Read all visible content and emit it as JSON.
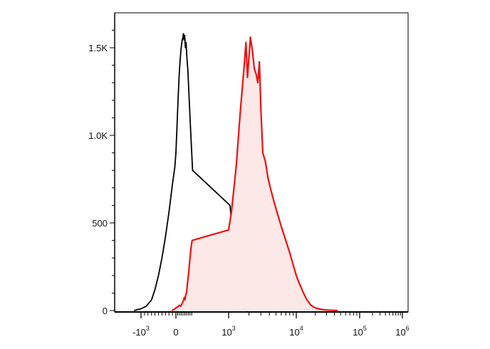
{
  "chart_data": {
    "type": "area",
    "title": "",
    "xlabel": "",
    "ylabel": "",
    "x_scale": "biexponential",
    "ylim": [
      0,
      1650
    ],
    "y_ticks": [
      {
        "value": 0,
        "label": "0"
      },
      {
        "value": 500,
        "label": "500"
      },
      {
        "value": 1000,
        "label": "1.0K"
      },
      {
        "value": 1500,
        "label": "1.5K"
      }
    ],
    "x_ticks": [
      {
        "value": -1000,
        "base": "-10",
        "exp": "3"
      },
      {
        "value": 0,
        "base": "0",
        "exp": ""
      },
      {
        "value": 1000,
        "base": "10",
        "exp": "3"
      },
      {
        "value": 10000,
        "base": "10",
        "exp": "4"
      },
      {
        "value": 100000,
        "base": "10",
        "exp": "5"
      },
      {
        "value": 1000000,
        "base": "10",
        "exp": "6"
      }
    ],
    "grid": false,
    "colors": {
      "control": "#000000",
      "stained_line": "#ee1111",
      "stained_fill": "#fde8e8",
      "axis": "#000000"
    },
    "series": [
      {
        "style": "outline",
        "color": "#000000",
        "points": [
          [
            -1200,
            0
          ],
          [
            -1000,
            10
          ],
          [
            -850,
            25
          ],
          [
            -700,
            60
          ],
          [
            -600,
            120
          ],
          [
            -500,
            200
          ],
          [
            -400,
            300
          ],
          [
            -300,
            420
          ],
          [
            -200,
            560
          ],
          [
            -100,
            720
          ],
          [
            -30,
            820
          ],
          [
            0,
            900
          ],
          [
            60,
            1050
          ],
          [
            120,
            1200
          ],
          [
            180,
            1330
          ],
          [
            240,
            1430
          ],
          [
            300,
            1500
          ],
          [
            350,
            1540
          ],
          [
            400,
            1560
          ],
          [
            430,
            1580
          ],
          [
            460,
            1545
          ],
          [
            500,
            1570
          ],
          [
            540,
            1500
          ],
          [
            580,
            1530
          ],
          [
            620,
            1450
          ],
          [
            680,
            1370
          ],
          [
            760,
            1200
          ],
          [
            850,
            1000
          ],
          [
            950,
            800
          ],
          [
            1050,
            600
          ],
          [
            1150,
            430
          ],
          [
            1250,
            300
          ],
          [
            1350,
            190
          ],
          [
            1450,
            110
          ],
          [
            1600,
            50
          ],
          [
            1750,
            15
          ],
          [
            1900,
            0
          ]
        ]
      },
      {
        "style": "filled",
        "color": "#ee1111",
        "points": [
          [
            -120,
            0
          ],
          [
            -40,
            8
          ],
          [
            40,
            18
          ],
          [
            120,
            22
          ],
          [
            200,
            30
          ],
          [
            280,
            25
          ],
          [
            350,
            40
          ],
          [
            420,
            55
          ],
          [
            480,
            75
          ],
          [
            520,
            62
          ],
          [
            560,
            90
          ],
          [
            610,
            105
          ],
          [
            660,
            160
          ],
          [
            720,
            210
          ],
          [
            780,
            275
          ],
          [
            850,
            350
          ],
          [
            920,
            400
          ],
          [
            1000,
            460
          ],
          [
            1100,
            560
          ],
          [
            1200,
            700
          ],
          [
            1300,
            830
          ],
          [
            1400,
            1000
          ],
          [
            1500,
            1150
          ],
          [
            1600,
            1280
          ],
          [
            1700,
            1400
          ],
          [
            1800,
            1530
          ],
          [
            1900,
            1330
          ],
          [
            2000,
            1450
          ],
          [
            2100,
            1560
          ],
          [
            2250,
            1480
          ],
          [
            2400,
            1380
          ],
          [
            2550,
            1350
          ],
          [
            2700,
            1300
          ],
          [
            2850,
            1420
          ],
          [
            3000,
            1150
          ],
          [
            3200,
            900
          ],
          [
            3500,
            850
          ],
          [
            3800,
            760
          ],
          [
            4200,
            690
          ],
          [
            4700,
            620
          ],
          [
            5300,
            550
          ],
          [
            6000,
            480
          ],
          [
            7000,
            400
          ],
          [
            8000,
            330
          ],
          [
            9000,
            260
          ],
          [
            10000,
            200
          ],
          [
            11000,
            160
          ],
          [
            12000,
            130
          ],
          [
            13000,
            100
          ],
          [
            14500,
            65
          ],
          [
            17000,
            30
          ],
          [
            20000,
            15
          ],
          [
            25000,
            6
          ],
          [
            32000,
            2
          ],
          [
            45000,
            0
          ]
        ]
      }
    ]
  }
}
